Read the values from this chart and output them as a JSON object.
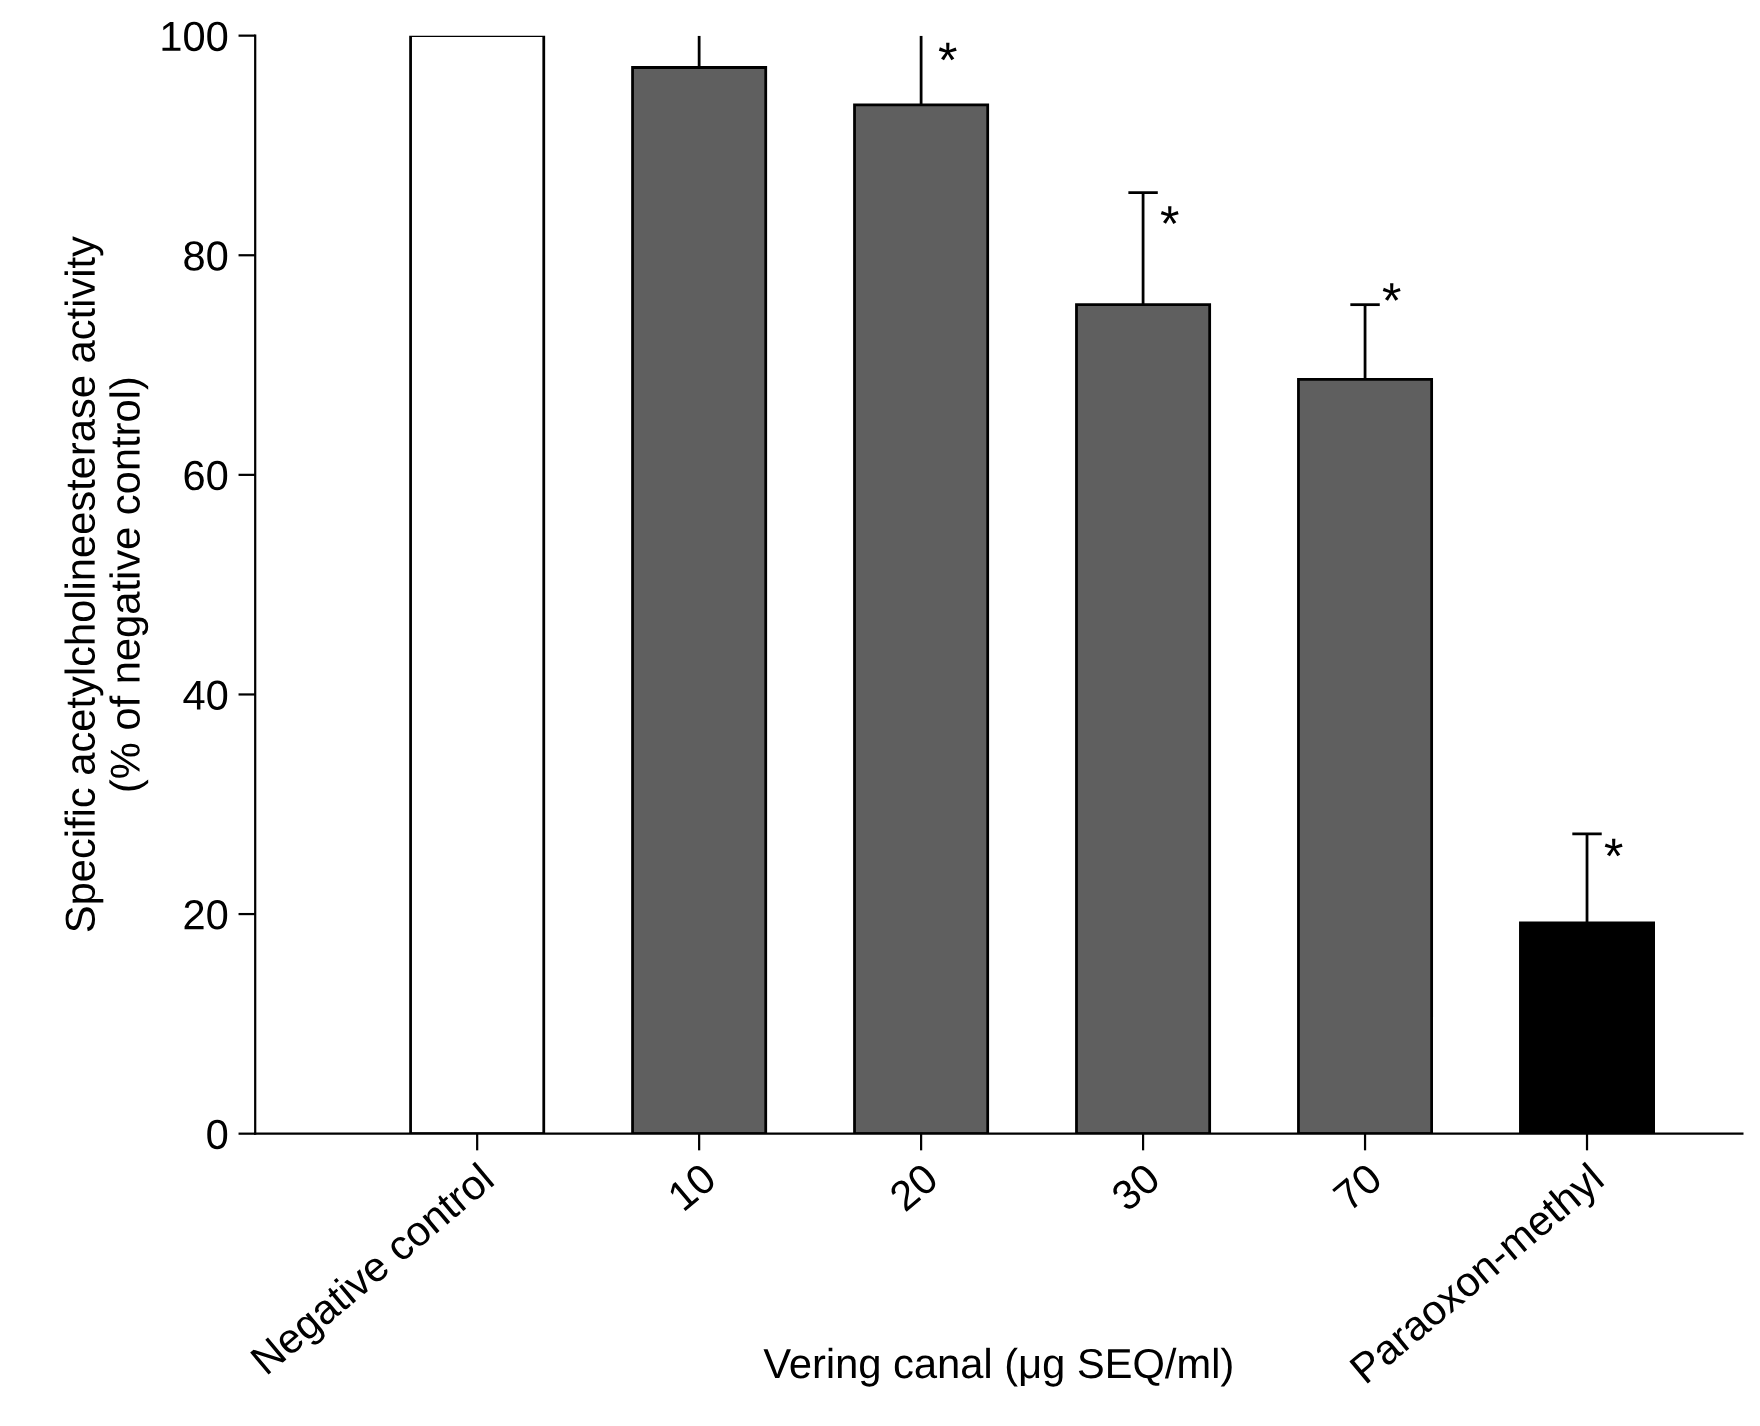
{
  "chart_data": {
    "type": "bar",
    "xlabel": "Vering canal (μg SEQ/ml)",
    "ylabel": "Specific acetylcholineesterase activity\n(% of negative control)",
    "categories": [
      "Negative control",
      "10",
      "20",
      "30",
      "70",
      "Paraoxon-methyl"
    ],
    "values": [
      100,
      97.1,
      93.7,
      75.5,
      68.7,
      19.2
    ],
    "colors": [
      "#ffffff",
      "#5f5f5f",
      "#5f5f5f",
      "#5f5f5f",
      "#5f5f5f",
      "#000000"
    ],
    "errors": [
      null,
      [
        97.1,
        100
      ],
      [
        93.7,
        100
      ],
      [
        75.5,
        85.7
      ],
      [
        68.7,
        75.5
      ],
      [
        19.2,
        27.3
      ]
    ],
    "ylim": [
      0,
      100
    ],
    "yticks": [
      0,
      20,
      40,
      60,
      80,
      100
    ],
    "grid": false,
    "legend": false,
    "annotations": [
      {
        "text": "*",
        "x": "20",
        "y": 97.4
      },
      {
        "text": "*",
        "x": "30",
        "y": 82.5
      },
      {
        "text": "*",
        "x": "70",
        "y": 75.5
      },
      {
        "text": "*",
        "x": "Paraoxon-methyl",
        "y": 24.9
      }
    ]
  }
}
